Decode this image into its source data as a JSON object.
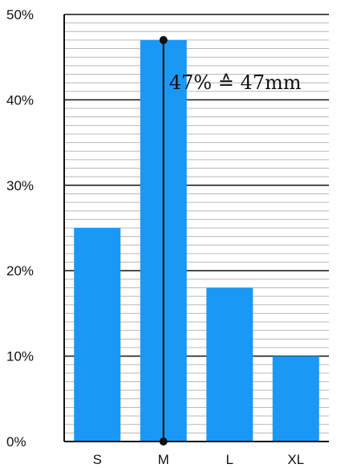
{
  "chart_data": {
    "type": "bar",
    "categories": [
      "S",
      "M",
      "L",
      "XL"
    ],
    "values": [
      25,
      47,
      18,
      10
    ],
    "ylim": [
      0,
      50
    ],
    "y_ticks": [
      "0%",
      "10%",
      "20%",
      "30%",
      "40%",
      "50%"
    ],
    "title": "",
    "xlabel": "",
    "ylabel": "",
    "grid": "on (major every 10%, minor every 1%)",
    "bar_color": "#1a98f5",
    "annotation": {
      "category": "M",
      "text": "47% ≙ 47mm"
    }
  }
}
